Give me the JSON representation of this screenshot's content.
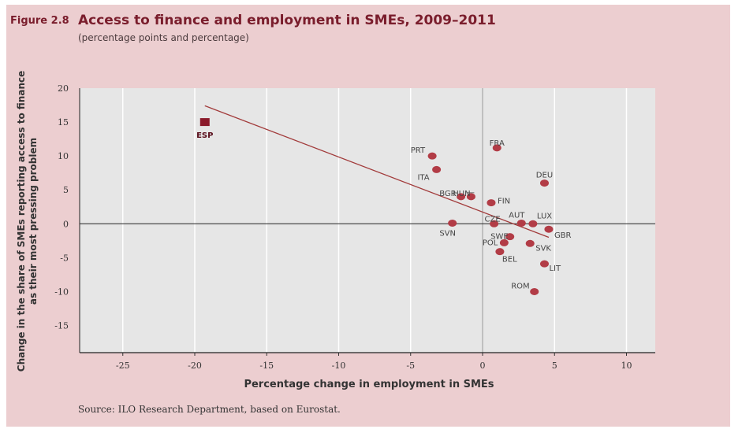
{
  "figure": {
    "label": "Figure 2.8",
    "title": "Access to finance and employment in SMEs, 2009–2011",
    "subtitle": "(percentage points and percentage)",
    "source": "Source: ILO Research Department, based on Eurostat."
  },
  "colors": {
    "panel_bg": "#ecced0",
    "plot_bg": "#e6e6e6",
    "grid": "#ffffff",
    "marker": "#b23c46",
    "highlight_marker": "#8b1a2b",
    "trendline": "#a23b3b",
    "title": "#7a1d2c"
  },
  "chart_data": {
    "type": "scatter",
    "xlabel": "Percentage change in employment in SMEs",
    "ylabel_lines": [
      "Change in the share of SMEs reporting access to finance",
      "as their most pressing problem"
    ],
    "xlim": [
      -28,
      12
    ],
    "ylim": [
      -19,
      20
    ],
    "xticks": [
      -25,
      -20,
      -15,
      -10,
      -5,
      0,
      5,
      10
    ],
    "yticks": [
      20,
      15,
      10,
      5,
      0,
      -5,
      -10,
      -15
    ],
    "points": [
      {
        "label": "ESP",
        "x": -19.3,
        "y": 15.0,
        "highlight": true
      },
      {
        "label": "FRA",
        "x": 1.0,
        "y": 11.2
      },
      {
        "label": "PRT",
        "x": -3.5,
        "y": 10.0
      },
      {
        "label": "ITA",
        "x": -3.2,
        "y": 8.0
      },
      {
        "label": "DEU",
        "x": 4.3,
        "y": 6.0
      },
      {
        "label": "BGR",
        "x": -1.5,
        "y": 4.0
      },
      {
        "label": "HUN",
        "x": -0.8,
        "y": 4.0
      },
      {
        "label": "FIN",
        "x": 0.6,
        "y": 3.1
      },
      {
        "label": "CZE",
        "x": 0.8,
        "y": 0.0
      },
      {
        "label": "AUT",
        "x": 2.7,
        "y": 0.1
      },
      {
        "label": "LUX",
        "x": 3.5,
        "y": 0.0
      },
      {
        "label": "SVN",
        "x": -2.1,
        "y": 0.1
      },
      {
        "label": "GBR",
        "x": 4.6,
        "y": -0.8
      },
      {
        "label": "SWE",
        "x": 1.9,
        "y": -1.9
      },
      {
        "label": "POL",
        "x": 1.5,
        "y": -2.8
      },
      {
        "label": "SVK",
        "x": 3.3,
        "y": -2.9
      },
      {
        "label": "BEL",
        "x": 1.2,
        "y": -4.1
      },
      {
        "label": "LIT",
        "x": 4.3,
        "y": -5.9
      },
      {
        "label": "ROM",
        "x": 3.6,
        "y": -10.0
      }
    ],
    "trendline": {
      "x1": -19.3,
      "y1": 17.4,
      "x2": 4.6,
      "y2": -2.0
    }
  }
}
